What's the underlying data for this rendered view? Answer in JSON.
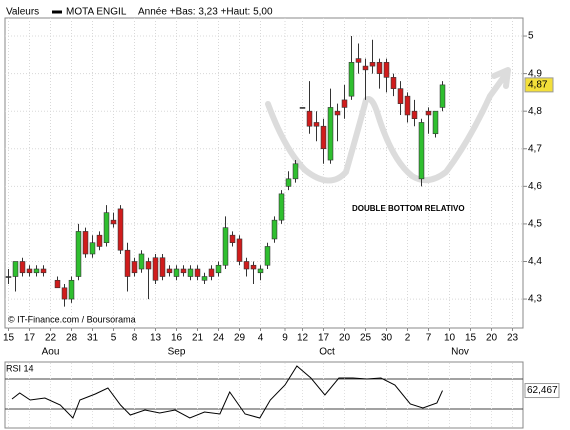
{
  "header": {
    "menu": "Valeurs",
    "name": "MOTA ENGIL",
    "range": "Année +Bas: 3,23 +Haut: 5,00"
  },
  "chart_data": {
    "type": "candlestick",
    "annotation": "DOUBLE BOTTOM RELATIVO",
    "credit": "© IT-Finance.com / Boursorama",
    "up_color": "#2fbf2f",
    "down_color": "#d01c1c",
    "grid": true,
    "x": [
      0,
      1,
      2,
      3,
      4,
      5,
      7,
      8,
      9,
      10,
      11,
      12,
      13,
      14,
      15,
      16,
      17,
      18,
      19,
      20,
      21,
      22,
      23,
      24,
      25,
      26,
      27,
      28,
      29,
      30,
      31,
      32,
      33,
      34,
      35,
      36,
      37,
      38,
      39,
      40,
      41,
      42,
      43,
      44,
      45,
      46,
      47,
      48,
      49,
      50,
      51,
      52,
      53,
      54,
      55,
      56,
      57,
      58,
      59,
      60,
      61,
      62
    ],
    "open": [
      4.36,
      4.36,
      4.4,
      4.38,
      4.37,
      4.38,
      4.35,
      4.33,
      4.3,
      4.36,
      4.48,
      4.42,
      4.47,
      4.45,
      4.51,
      4.54,
      4.43,
      4.4,
      4.38,
      4.4,
      4.41,
      4.41,
      4.38,
      4.36,
      4.38,
      4.36,
      4.38,
      4.35,
      4.38,
      4.37,
      4.39,
      4.47,
      4.46,
      4.4,
      4.39,
      4.37,
      4.39,
      4.46,
      4.51,
      4.6,
      4.62,
      4.81,
      4.8,
      4.77,
      4.76,
      4.67,
      4.8,
      4.83,
      4.84,
      4.94,
      4.92,
      4.93,
      4.93,
      4.93,
      4.89,
      4.86,
      4.84,
      4.8,
      4.62,
      4.8,
      4.74,
      4.81
    ],
    "high": [
      4.38,
      4.4,
      4.41,
      4.39,
      4.39,
      4.39,
      4.36,
      4.34,
      4.36,
      4.5,
      4.49,
      4.47,
      4.48,
      4.55,
      4.53,
      4.55,
      4.45,
      4.41,
      4.43,
      4.41,
      4.42,
      4.42,
      4.39,
      4.39,
      4.39,
      4.39,
      4.39,
      4.37,
      4.39,
      4.4,
      4.52,
      4.48,
      4.47,
      4.41,
      4.4,
      4.39,
      4.45,
      4.52,
      4.59,
      4.64,
      4.67,
      4.81,
      4.88,
      4.8,
      4.78,
      4.86,
      4.82,
      4.87,
      5.0,
      4.98,
      4.94,
      4.99,
      4.94,
      4.94,
      4.9,
      4.88,
      4.85,
      4.83,
      4.78,
      4.81,
      4.8,
      4.88
    ],
    "low": [
      4.34,
      4.32,
      4.36,
      4.36,
      4.36,
      4.36,
      4.33,
      4.28,
      4.29,
      4.35,
      4.41,
      4.41,
      4.43,
      4.44,
      4.49,
      4.42,
      4.32,
      4.36,
      4.37,
      4.3,
      4.34,
      4.35,
      4.36,
      4.35,
      4.36,
      4.35,
      4.35,
      4.34,
      4.35,
      4.36,
      4.38,
      4.44,
      4.39,
      4.36,
      4.34,
      4.35,
      4.38,
      4.45,
      4.5,
      4.59,
      4.61,
      4.81,
      4.74,
      4.72,
      4.66,
      4.66,
      4.72,
      4.78,
      4.83,
      4.9,
      4.83,
      4.9,
      4.86,
      4.85,
      4.84,
      4.79,
      4.77,
      4.76,
      4.6,
      4.74,
      4.73,
      4.8
    ],
    "close": [
      4.36,
      4.4,
      4.37,
      4.37,
      4.38,
      4.37,
      4.33,
      4.3,
      4.35,
      4.48,
      4.42,
      4.45,
      4.44,
      4.53,
      4.5,
      4.43,
      4.36,
      4.37,
      4.42,
      4.38,
      4.35,
      4.36,
      4.37,
      4.38,
      4.37,
      4.38,
      4.36,
      4.36,
      4.36,
      4.39,
      4.49,
      4.45,
      4.4,
      4.38,
      4.38,
      4.38,
      4.44,
      4.51,
      4.58,
      4.62,
      4.66,
      4.81,
      4.76,
      4.76,
      4.7,
      4.81,
      4.79,
      4.81,
      4.93,
      4.93,
      4.91,
      4.92,
      4.9,
      4.89,
      4.86,
      4.82,
      4.79,
      4.78,
      4.77,
      4.79,
      4.8,
      4.87
    ],
    "last": {
      "value": 4.87,
      "label": "4,87"
    },
    "xlim": [
      -0.5,
      73.5
    ],
    "xticks": [
      {
        "value": 0,
        "label": "15"
      },
      {
        "value": 3,
        "label": "17"
      },
      {
        "value": 6,
        "label": "22"
      },
      {
        "value": 9,
        "label": "28"
      },
      {
        "value": 12,
        "label": "31"
      },
      {
        "value": 15,
        "label": "5"
      },
      {
        "value": 18,
        "label": "8"
      },
      {
        "value": 21,
        "label": "13"
      },
      {
        "value": 24,
        "label": "16"
      },
      {
        "value": 27,
        "label": "21"
      },
      {
        "value": 30,
        "label": "24"
      },
      {
        "value": 33,
        "label": "29"
      },
      {
        "value": 36,
        "label": "4"
      },
      {
        "value": 39.5,
        "label": "9"
      },
      {
        "value": 42,
        "label": "12"
      },
      {
        "value": 45,
        "label": "17"
      },
      {
        "value": 48,
        "label": "20"
      },
      {
        "value": 51,
        "label": "25"
      },
      {
        "value": 54,
        "label": "30"
      },
      {
        "value": 57,
        "label": "2"
      },
      {
        "value": 60,
        "label": "7"
      },
      {
        "value": 63,
        "label": "10"
      },
      {
        "value": 66,
        "label": "15"
      },
      {
        "value": 69,
        "label": "20"
      },
      {
        "value": 72,
        "label": "23"
      }
    ],
    "months": [
      {
        "value": 6,
        "label": "Aou"
      },
      {
        "value": 24,
        "label": "Sep"
      },
      {
        "value": 45.5,
        "label": "Oct"
      },
      {
        "value": 64.5,
        "label": "Nov"
      }
    ],
    "ylim": [
      4.223,
      5.048
    ],
    "yticks": [
      5,
      {
        "value": 4.9,
        "label": "4,9"
      },
      {
        "value": 4.8,
        "label": "4,8"
      },
      {
        "value": 4.7,
        "label": "4,7"
      },
      {
        "value": 4.6,
        "label": "4,6"
      },
      {
        "value": 4.5,
        "label": "4,5"
      },
      {
        "value": 4.4,
        "label": "4,4"
      },
      {
        "value": 4.3,
        "label": "4,3"
      }
    ],
    "rsi": {
      "name": "RSI 14",
      "color": "#000000",
      "x": [
        0.5,
        1.6,
        3.1,
        5.2,
        7.4,
        9.2,
        10.2,
        12.4,
        14.2,
        16,
        17.4,
        19.5,
        21.6,
        23.8,
        25.9,
        28,
        30.2,
        31.6,
        33.8,
        35.9,
        37.4,
        39.5,
        41.2,
        43.2,
        45.2,
        47.2,
        49.2,
        51.2,
        53.2,
        55.2,
        57.4,
        59.2,
        61.2,
        62
      ],
      "values": [
        54,
        60,
        53,
        55,
        48,
        35,
        53,
        59,
        65,
        48,
        38,
        43,
        40,
        43,
        35,
        41,
        39,
        61,
        39,
        35,
        53,
        68,
        87,
        75,
        58,
        75,
        75,
        74,
        75,
        68,
        49,
        45,
        50,
        62.467
      ],
      "last": {
        "value": 62.467,
        "label": "62,467"
      },
      "ylim": [
        25,
        90
      ]
    }
  }
}
